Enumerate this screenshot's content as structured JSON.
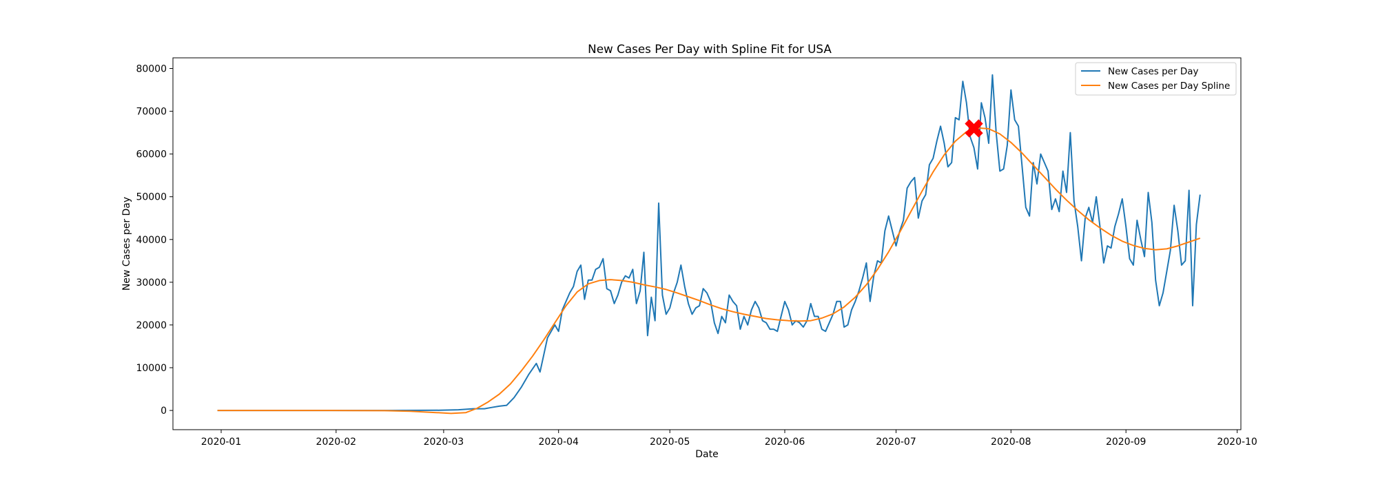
{
  "chart_data": {
    "type": "line",
    "title": "New Cases Per Day with Spline Fit for USA",
    "xlabel": "Date",
    "ylabel": "New Cases per Day",
    "x_ticks": [
      "2020-01",
      "2020-02",
      "2020-03",
      "2020-04",
      "2020-05",
      "2020-06",
      "2020-07",
      "2020-08",
      "2020-09",
      "2020-10"
    ],
    "y_ticks": [
      0,
      10000,
      20000,
      30000,
      40000,
      50000,
      60000,
      70000,
      80000
    ],
    "xlim": [
      "2019-12-19",
      "2020-10-02"
    ],
    "ylim": [
      -4500,
      82500
    ],
    "grid": false,
    "legend_position": "top-right",
    "series": [
      {
        "name": "New Cases per Day",
        "color": "#1f77b4",
        "points": [
          [
            "2019-12-31",
            0
          ],
          [
            "2020-02-15",
            0
          ],
          [
            "2020-02-29",
            50
          ],
          [
            "2020-03-05",
            150
          ],
          [
            "2020-03-09",
            400
          ],
          [
            "2020-03-12",
            400
          ],
          [
            "2020-03-14",
            700
          ],
          [
            "2020-03-16",
            1000
          ],
          [
            "2020-03-18",
            1200
          ],
          [
            "2020-03-20",
            3000
          ],
          [
            "2020-03-22",
            5500
          ],
          [
            "2020-03-24",
            8500
          ],
          [
            "2020-03-26",
            11000
          ],
          [
            "2020-03-27",
            9000
          ],
          [
            "2020-03-29",
            17000
          ],
          [
            "2020-03-31",
            20000
          ],
          [
            "2020-04-01",
            18500
          ],
          [
            "2020-04-02",
            23500
          ],
          [
            "2020-04-04",
            27500
          ],
          [
            "2020-04-05",
            29000
          ],
          [
            "2020-04-06",
            32500
          ],
          [
            "2020-04-07",
            34000
          ],
          [
            "2020-04-08",
            26000
          ],
          [
            "2020-04-09",
            30500
          ],
          [
            "2020-04-10",
            30500
          ],
          [
            "2020-04-11",
            33000
          ],
          [
            "2020-04-12",
            33500
          ],
          [
            "2020-04-13",
            35500
          ],
          [
            "2020-04-14",
            28500
          ],
          [
            "2020-04-15",
            28000
          ],
          [
            "2020-04-16",
            25000
          ],
          [
            "2020-04-17",
            27000
          ],
          [
            "2020-04-18",
            30000
          ],
          [
            "2020-04-19",
            31500
          ],
          [
            "2020-04-20",
            31000
          ],
          [
            "2020-04-21",
            33000
          ],
          [
            "2020-04-22",
            25000
          ],
          [
            "2020-04-23",
            28000
          ],
          [
            "2020-04-24",
            37000
          ],
          [
            "2020-04-25",
            17500
          ],
          [
            "2020-04-26",
            26500
          ],
          [
            "2020-04-27",
            21000
          ],
          [
            "2020-04-28",
            48500
          ],
          [
            "2020-04-29",
            27000
          ],
          [
            "2020-04-30",
            22500
          ],
          [
            "2020-05-01",
            24000
          ],
          [
            "2020-05-02",
            27500
          ],
          [
            "2020-05-03",
            30000
          ],
          [
            "2020-05-04",
            34000
          ],
          [
            "2020-05-05",
            29000
          ],
          [
            "2020-05-06",
            25000
          ],
          [
            "2020-05-07",
            22500
          ],
          [
            "2020-05-08",
            24000
          ],
          [
            "2020-05-09",
            24500
          ],
          [
            "2020-05-10",
            28500
          ],
          [
            "2020-05-11",
            27500
          ],
          [
            "2020-05-12",
            25500
          ],
          [
            "2020-05-13",
            20500
          ],
          [
            "2020-05-14",
            18000
          ],
          [
            "2020-05-15",
            22000
          ],
          [
            "2020-05-16",
            20500
          ],
          [
            "2020-05-17",
            27000
          ],
          [
            "2020-05-18",
            25500
          ],
          [
            "2020-05-19",
            24500
          ],
          [
            "2020-05-20",
            19000
          ],
          [
            "2020-05-21",
            22000
          ],
          [
            "2020-05-22",
            20000
          ],
          [
            "2020-05-23",
            23500
          ],
          [
            "2020-05-24",
            25500
          ],
          [
            "2020-05-25",
            24000
          ],
          [
            "2020-05-26",
            21000
          ],
          [
            "2020-05-27",
            20500
          ],
          [
            "2020-05-28",
            19000
          ],
          [
            "2020-05-29",
            19000
          ],
          [
            "2020-05-30",
            18500
          ],
          [
            "2020-05-31",
            22000
          ],
          [
            "2020-06-01",
            25500
          ],
          [
            "2020-06-02",
            23500
          ],
          [
            "2020-06-03",
            20000
          ],
          [
            "2020-06-04",
            21000
          ],
          [
            "2020-06-05",
            20500
          ],
          [
            "2020-06-06",
            19500
          ],
          [
            "2020-06-07",
            21000
          ],
          [
            "2020-06-08",
            25000
          ],
          [
            "2020-06-09",
            22000
          ],
          [
            "2020-06-10",
            22000
          ],
          [
            "2020-06-11",
            19000
          ],
          [
            "2020-06-12",
            18500
          ],
          [
            "2020-06-13",
            20500
          ],
          [
            "2020-06-14",
            22500
          ],
          [
            "2020-06-15",
            25500
          ],
          [
            "2020-06-16",
            25500
          ],
          [
            "2020-06-17",
            19500
          ],
          [
            "2020-06-18",
            20000
          ],
          [
            "2020-06-19",
            23500
          ],
          [
            "2020-06-20",
            25500
          ],
          [
            "2020-06-21",
            28000
          ],
          [
            "2020-06-22",
            31000
          ],
          [
            "2020-06-23",
            34500
          ],
          [
            "2020-06-24",
            25500
          ],
          [
            "2020-06-25",
            31500
          ],
          [
            "2020-06-26",
            35000
          ],
          [
            "2020-06-27",
            34500
          ],
          [
            "2020-06-28",
            42000
          ],
          [
            "2020-06-29",
            45500
          ],
          [
            "2020-06-30",
            42000
          ],
          [
            "2020-07-01",
            38500
          ],
          [
            "2020-07-02",
            42000
          ],
          [
            "2020-07-03",
            44500
          ],
          [
            "2020-07-04",
            52000
          ],
          [
            "2020-07-05",
            53500
          ],
          [
            "2020-07-06",
            54500
          ],
          [
            "2020-07-07",
            45000
          ],
          [
            "2020-07-08",
            49000
          ],
          [
            "2020-07-09",
            50500
          ],
          [
            "2020-07-10",
            57500
          ],
          [
            "2020-07-11",
            59000
          ],
          [
            "2020-07-12",
            63000
          ],
          [
            "2020-07-13",
            66500
          ],
          [
            "2020-07-14",
            62500
          ],
          [
            "2020-07-15",
            57000
          ],
          [
            "2020-07-16",
            58000
          ],
          [
            "2020-07-17",
            68500
          ],
          [
            "2020-07-18",
            68000
          ],
          [
            "2020-07-19",
            77000
          ],
          [
            "2020-07-20",
            72000
          ],
          [
            "2020-07-21",
            64000
          ],
          [
            "2020-07-22",
            61500
          ],
          [
            "2020-07-23",
            56500
          ],
          [
            "2020-07-24",
            72000
          ],
          [
            "2020-07-25",
            68500
          ],
          [
            "2020-07-26",
            62500
          ],
          [
            "2020-07-27",
            78500
          ],
          [
            "2020-07-28",
            65000
          ],
          [
            "2020-07-29",
            56000
          ],
          [
            "2020-07-30",
            56500
          ],
          [
            "2020-07-31",
            62000
          ],
          [
            "2020-08-01",
            75000
          ],
          [
            "2020-08-02",
            68000
          ],
          [
            "2020-08-03",
            66500
          ],
          [
            "2020-08-04",
            57000
          ],
          [
            "2020-08-05",
            47500
          ],
          [
            "2020-08-06",
            45500
          ],
          [
            "2020-08-07",
            58000
          ],
          [
            "2020-08-08",
            53000
          ],
          [
            "2020-08-09",
            60000
          ],
          [
            "2020-08-10",
            58000
          ],
          [
            "2020-08-11",
            56000
          ],
          [
            "2020-08-12",
            47000
          ],
          [
            "2020-08-13",
            49500
          ],
          [
            "2020-08-14",
            46500
          ],
          [
            "2020-08-15",
            56000
          ],
          [
            "2020-08-16",
            51000
          ],
          [
            "2020-08-17",
            65000
          ],
          [
            "2020-08-18",
            49000
          ],
          [
            "2020-08-19",
            43000
          ],
          [
            "2020-08-20",
            35000
          ],
          [
            "2020-08-21",
            45000
          ],
          [
            "2020-08-22",
            47500
          ],
          [
            "2020-08-23",
            44000
          ],
          [
            "2020-08-24",
            50000
          ],
          [
            "2020-08-25",
            43000
          ],
          [
            "2020-08-26",
            34500
          ],
          [
            "2020-08-27",
            38500
          ],
          [
            "2020-08-28",
            38000
          ],
          [
            "2020-08-29",
            43000
          ],
          [
            "2020-08-30",
            46000
          ],
          [
            "2020-08-31",
            49500
          ],
          [
            "2020-09-01",
            43000
          ],
          [
            "2020-09-02",
            35500
          ],
          [
            "2020-09-03",
            34000
          ],
          [
            "2020-09-04",
            44500
          ],
          [
            "2020-09-05",
            40000
          ],
          [
            "2020-09-06",
            36000
          ],
          [
            "2020-09-07",
            51000
          ],
          [
            "2020-09-08",
            44000
          ],
          [
            "2020-09-09",
            30500
          ],
          [
            "2020-09-10",
            24500
          ],
          [
            "2020-09-11",
            27500
          ],
          [
            "2020-09-12",
            32500
          ],
          [
            "2020-09-13",
            37500
          ],
          [
            "2020-09-14",
            48000
          ],
          [
            "2020-09-15",
            42000
          ],
          [
            "2020-09-16",
            34000
          ],
          [
            "2020-09-17",
            35000
          ],
          [
            "2020-09-18",
            51500
          ],
          [
            "2020-09-19",
            24500
          ],
          [
            "2020-09-20",
            43500
          ],
          [
            "2020-09-21",
            50500
          ]
        ]
      },
      {
        "name": "New Cases per Day Spline",
        "color": "#ff7f0e",
        "points": [
          [
            "2019-12-31",
            0
          ],
          [
            "2020-01-31",
            0
          ],
          [
            "2020-02-14",
            -50
          ],
          [
            "2020-02-21",
            -200
          ],
          [
            "2020-02-28",
            -500
          ],
          [
            "2020-03-03",
            -700
          ],
          [
            "2020-03-07",
            -500
          ],
          [
            "2020-03-10",
            500
          ],
          [
            "2020-03-13",
            2000
          ],
          [
            "2020-03-16",
            3800
          ],
          [
            "2020-03-19",
            6200
          ],
          [
            "2020-03-22",
            9300
          ],
          [
            "2020-03-25",
            12700
          ],
          [
            "2020-03-28",
            16500
          ],
          [
            "2020-03-31",
            20500
          ],
          [
            "2020-04-03",
            24500
          ],
          [
            "2020-04-06",
            27700
          ],
          [
            "2020-04-09",
            29600
          ],
          [
            "2020-04-12",
            30400
          ],
          [
            "2020-04-15",
            30600
          ],
          [
            "2020-04-18",
            30400
          ],
          [
            "2020-04-21",
            30000
          ],
          [
            "2020-04-24",
            29400
          ],
          [
            "2020-04-27",
            28900
          ],
          [
            "2020-04-30",
            28300
          ],
          [
            "2020-05-03",
            27500
          ],
          [
            "2020-05-06",
            26600
          ],
          [
            "2020-05-09",
            25700
          ],
          [
            "2020-05-12",
            24700
          ],
          [
            "2020-05-15",
            23800
          ],
          [
            "2020-05-18",
            23100
          ],
          [
            "2020-05-21",
            22500
          ],
          [
            "2020-05-24",
            22000
          ],
          [
            "2020-05-27",
            21500
          ],
          [
            "2020-05-30",
            21200
          ],
          [
            "2020-06-02",
            21000
          ],
          [
            "2020-06-05",
            20900
          ],
          [
            "2020-06-08",
            21000
          ],
          [
            "2020-06-11",
            21600
          ],
          [
            "2020-06-14",
            22600
          ],
          [
            "2020-06-17",
            24200
          ],
          [
            "2020-06-20",
            26500
          ],
          [
            "2020-06-23",
            29400
          ],
          [
            "2020-06-26",
            33000
          ],
          [
            "2020-06-29",
            37100
          ],
          [
            "2020-07-02",
            41700
          ],
          [
            "2020-07-05",
            46500
          ],
          [
            "2020-07-08",
            51300
          ],
          [
            "2020-07-11",
            55800
          ],
          [
            "2020-07-14",
            59800
          ],
          [
            "2020-07-17",
            63000
          ],
          [
            "2020-07-20",
            65200
          ],
          [
            "2020-07-23",
            66100
          ],
          [
            "2020-07-26",
            65900
          ],
          [
            "2020-07-29",
            64700
          ],
          [
            "2020-08-01",
            62700
          ],
          [
            "2020-08-04",
            60200
          ],
          [
            "2020-08-07",
            57400
          ],
          [
            "2020-08-10",
            54600
          ],
          [
            "2020-08-13",
            51800
          ],
          [
            "2020-08-16",
            49200
          ],
          [
            "2020-08-19",
            46800
          ],
          [
            "2020-08-22",
            44600
          ],
          [
            "2020-08-25",
            42700
          ],
          [
            "2020-08-28",
            41000
          ],
          [
            "2020-08-31",
            39600
          ],
          [
            "2020-09-03",
            38600
          ],
          [
            "2020-09-06",
            37900
          ],
          [
            "2020-09-09",
            37600
          ],
          [
            "2020-09-12",
            37800
          ],
          [
            "2020-09-15",
            38500
          ],
          [
            "2020-09-18",
            39400
          ],
          [
            "2020-09-21",
            40300
          ]
        ]
      }
    ],
    "marker": {
      "x": "2020-07-22",
      "y": 66000,
      "symbol": "X",
      "color": "#ff0000"
    }
  }
}
